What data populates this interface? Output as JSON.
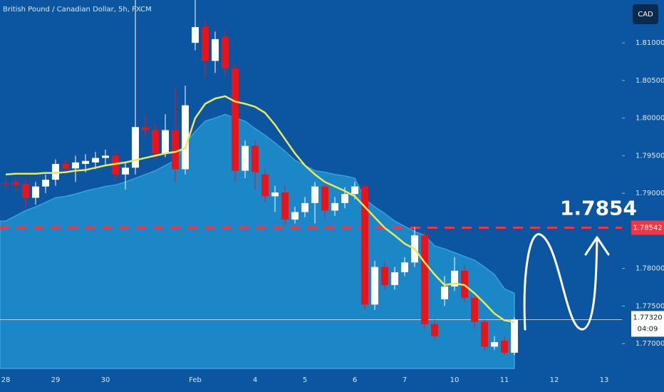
{
  "chart_data": {
    "type": "candlestick",
    "title": "British Pound / Canadian Dollar, 5h, FXCM",
    "currency": "CAD",
    "categories": [
      "28",
      null,
      null,
      null,
      null,
      "29",
      null,
      null,
      null,
      null,
      "30",
      null,
      null,
      null,
      null,
      null,
      null,
      null,
      null,
      "Feb",
      null,
      null,
      null,
      null,
      null,
      "4",
      null,
      null,
      null,
      null,
      "5",
      null,
      null,
      null,
      null,
      "6",
      null,
      null,
      null,
      null,
      "7",
      null,
      null,
      null,
      null,
      "10",
      null,
      null,
      null,
      null,
      "11",
      null,
      null,
      null,
      null,
      "12",
      null,
      null,
      null,
      null,
      "13"
    ],
    "candles": [
      [
        1.7913,
        1.792,
        1.7905,
        1.7912
      ],
      [
        1.7915,
        1.792,
        1.7902,
        1.7911
      ],
      [
        1.7912,
        1.792,
        1.788,
        1.7894
      ],
      [
        1.7894,
        1.7915,
        1.7885,
        1.7909
      ],
      [
        1.7909,
        1.7925,
        1.79,
        1.7918
      ],
      [
        1.7918,
        1.7945,
        1.791,
        1.7939
      ],
      [
        1.7939,
        1.7945,
        1.7925,
        1.7933
      ],
      [
        1.7933,
        1.795,
        1.7915,
        1.7941
      ],
      [
        1.7939,
        1.7952,
        1.7928,
        1.7943
      ],
      [
        1.7941,
        1.7955,
        1.7932,
        1.7947
      ],
      [
        1.7947,
        1.7958,
        1.7938,
        1.795
      ],
      [
        1.795,
        1.7956,
        1.7918,
        1.7925
      ],
      [
        1.7925,
        1.7941,
        1.7905,
        1.7934
      ],
      [
        1.7934,
        1.8157,
        1.7925,
        1.7988
      ],
      [
        1.7988,
        1.8005,
        1.7975,
        1.7984
      ],
      [
        1.7984,
        1.7992,
        1.7945,
        1.7953
      ],
      [
        1.7953,
        1.8005,
        1.7948,
        1.7984
      ],
      [
        1.7984,
        1.804,
        1.7915,
        1.7932
      ],
      [
        1.7932,
        1.8043,
        1.7925,
        1.8017
      ],
      [
        1.81,
        1.8157,
        1.809,
        1.8121
      ],
      [
        1.8121,
        1.813,
        1.8053,
        1.8076
      ],
      [
        1.8076,
        1.8115,
        1.806,
        1.8105
      ],
      [
        1.8108,
        1.8118,
        1.8055,
        1.8066
      ],
      [
        1.8066,
        1.8072,
        1.7915,
        1.793
      ],
      [
        1.793,
        1.797,
        1.792,
        1.7963
      ],
      [
        1.7963,
        1.797,
        1.7905,
        1.7928
      ],
      [
        1.7925,
        1.7932,
        1.7888,
        1.7896
      ],
      [
        1.7896,
        1.791,
        1.7875,
        1.7901
      ],
      [
        1.7901,
        1.791,
        1.7858,
        1.7865
      ],
      [
        1.7865,
        1.7882,
        1.786,
        1.7875
      ],
      [
        1.7875,
        1.7895,
        1.7868,
        1.7887
      ],
      [
        1.7887,
        1.7915,
        1.786,
        1.7909
      ],
      [
        1.7909,
        1.7915,
        1.7868,
        1.7877
      ],
      [
        1.7877,
        1.7895,
        1.787,
        1.7887
      ],
      [
        1.7887,
        1.7908,
        1.788,
        1.7899
      ],
      [
        1.7899,
        1.7915,
        1.7892,
        1.7909
      ],
      [
        1.7909,
        1.7912,
        1.7745,
        1.7752
      ],
      [
        1.7752,
        1.781,
        1.7745,
        1.7802
      ],
      [
        1.7802,
        1.781,
        1.7772,
        1.7778
      ],
      [
        1.7778,
        1.7802,
        1.7772,
        1.7795
      ],
      [
        1.7795,
        1.7815,
        1.779,
        1.7808
      ],
      [
        1.7808,
        1.7855,
        1.7802,
        1.7844
      ],
      [
        1.7844,
        1.785,
        1.772,
        1.7726
      ],
      [
        1.7726,
        1.7732,
        1.7705,
        1.771
      ],
      [
        1.7759,
        1.779,
        1.775,
        1.7776
      ],
      [
        1.7776,
        1.7815,
        1.777,
        1.7797
      ],
      [
        1.7797,
        1.7805,
        1.7755,
        1.7761
      ],
      [
        1.7761,
        1.7768,
        1.772,
        1.7729
      ],
      [
        1.7729,
        1.7732,
        1.769,
        1.7696
      ],
      [
        1.7696,
        1.771,
        1.7692,
        1.7702
      ],
      [
        1.7704,
        1.771,
        1.7685,
        1.7688
      ],
      [
        1.7688,
        1.7735,
        1.7685,
        1.7732
      ],
      null,
      null,
      null,
      null,
      null,
      null,
      null,
      null,
      null
    ],
    "up_color": "#ffffff",
    "down_color": "#e8141c",
    "ma": {
      "color": "#e8ea5a",
      "values": [
        1.7925,
        1.7926,
        1.7926,
        1.7926,
        1.7927,
        1.7927,
        1.7928,
        1.793,
        1.7931,
        1.7934,
        1.7937,
        1.7939,
        1.7941,
        1.7944,
        1.7947,
        1.795,
        1.7953,
        1.7955,
        1.796,
        1.8,
        1.8019,
        1.8026,
        1.8029,
        1.8022,
        1.8019,
        1.8015,
        1.8007,
        1.7991,
        1.7972,
        1.7953,
        1.7937,
        1.7925,
        1.7915,
        1.7909,
        1.7903,
        1.7896,
        1.7882,
        1.7868,
        1.7854,
        1.7844,
        1.7833,
        1.7826,
        1.7808,
        1.7792,
        1.7778,
        1.778,
        1.7778,
        1.7767,
        1.7754,
        1.774,
        1.7731,
        1.7729,
        null,
        null,
        null,
        null,
        null,
        null,
        null,
        null,
        null
      ]
    },
    "band": {
      "color": "#1b87c6",
      "values": [
        1.7863,
        1.787,
        1.7877,
        1.7882,
        1.7888,
        1.7894,
        1.7896,
        1.7899,
        1.7903,
        1.7906,
        1.7909,
        1.7911,
        1.7915,
        1.792,
        1.7925,
        1.793,
        1.7937,
        1.7944,
        1.7967,
        1.7982,
        1.7996,
        1.8,
        1.8005,
        1.8,
        1.7996,
        1.7986,
        1.7977,
        1.7967,
        1.7956,
        1.7944,
        1.7937,
        1.793,
        1.7928,
        1.7925,
        1.7923,
        1.792,
        1.7892,
        1.7882,
        1.7873,
        1.7863,
        1.7856,
        1.7849,
        1.7844,
        1.783,
        1.7826,
        1.7821,
        1.7816,
        1.7811,
        1.7802,
        1.7792,
        1.7773,
        1.7767,
        null,
        null,
        null,
        null,
        null,
        null,
        null,
        null,
        null
      ]
    },
    "ylim": [
      1.7667,
      1.8157
    ],
    "yticks": [
      {
        "value": 1.77,
        "label": "1.77000"
      },
      {
        "value": 1.775,
        "label": "1.77500"
      },
      {
        "value": 1.78,
        "label": "1.78000"
      },
      {
        "value": 1.79,
        "label": "1.79000"
      },
      {
        "value": 1.795,
        "label": "1.79500"
      },
      {
        "value": 1.8,
        "label": "1.80000"
      },
      {
        "value": 1.805,
        "label": "1.80500"
      },
      {
        "value": 1.81,
        "label": "1.81000"
      }
    ],
    "level": {
      "value": 1.78542,
      "label": "1.78542",
      "target": "1.7854",
      "color": "#f23645"
    },
    "current_price": {
      "value": 1.7732,
      "label": "1.77320",
      "countdown": "04:09"
    }
  }
}
